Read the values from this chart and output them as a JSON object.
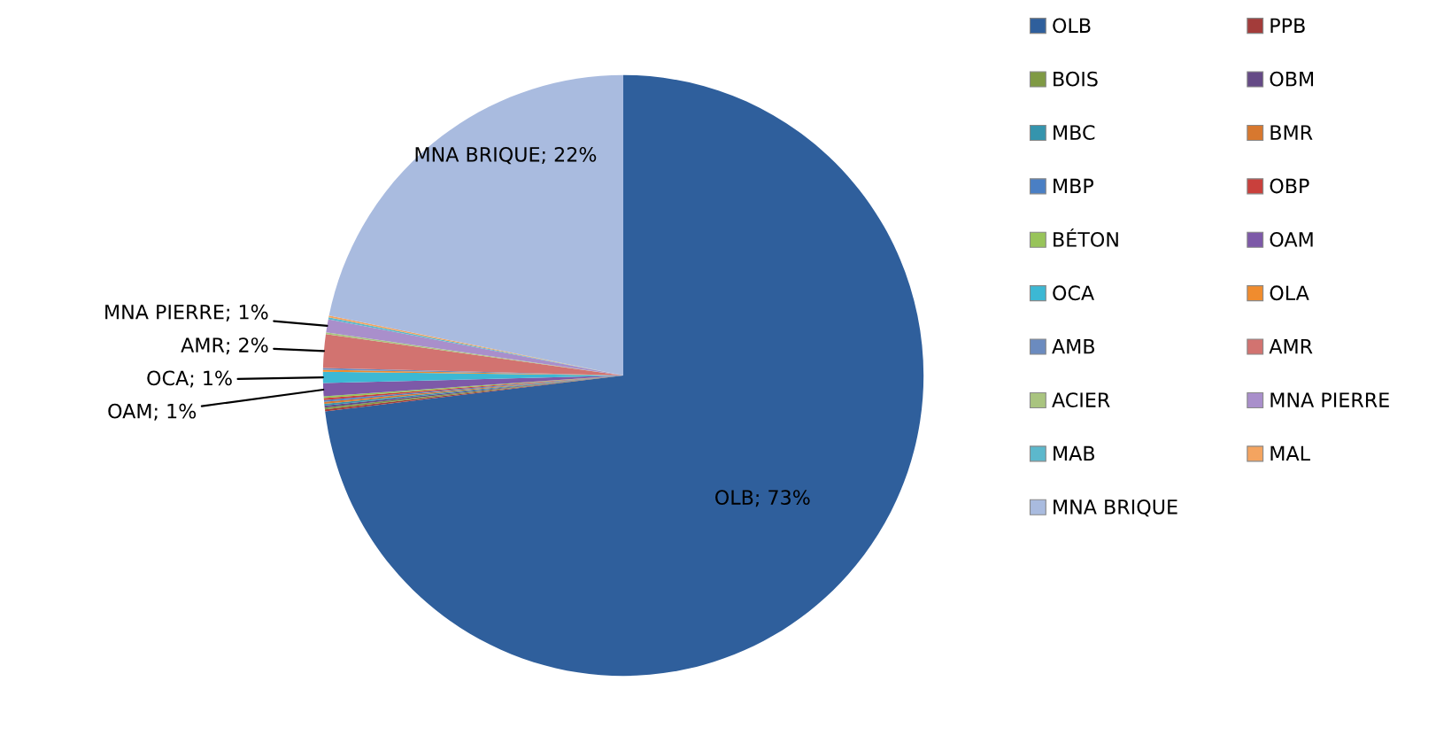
{
  "chart_data": {
    "type": "pie",
    "categories": [
      "OLB",
      "PPB",
      "BOIS",
      "OBM",
      "MBC",
      "BMR",
      "MBP",
      "OBP",
      "BÉTON",
      "OAM",
      "OCA",
      "OLA",
      "AMB",
      "AMR",
      "ACIER",
      "MNA PIERRE",
      "MAB",
      "MAL",
      "MNA BRIQUE"
    ],
    "values": [
      73.1,
      0.1,
      0.1,
      0.1,
      0.1,
      0.1,
      0.1,
      0.1,
      0.1,
      0.7,
      0.6,
      0.1,
      0.1,
      1.8,
      0.1,
      0.7,
      0.1,
      0.1,
      21.8
    ],
    "value_labels": [
      "OLB; 73%",
      null,
      null,
      null,
      null,
      null,
      null,
      null,
      null,
      "OAM; 1%",
      "OCA; 1%",
      null,
      null,
      "AMR; 2%",
      null,
      "MNA PIERRE; 1%",
      null,
      null,
      "MNA BRIQUE; 22%"
    ],
    "colors": [
      "#2f5f9c",
      "#a33c3a",
      "#7f9a44",
      "#654a86",
      "#3594ad",
      "#d7782f",
      "#4a7fc4",
      "#c9403c",
      "#98c45a",
      "#7d59a8",
      "#3cb8d4",
      "#f08c2e",
      "#6b8bbf",
      "#d27370",
      "#a9c47f",
      "#a98fcb",
      "#5cb8cc",
      "#f4a460",
      "#a9bbdf"
    ],
    "legend": "right"
  }
}
